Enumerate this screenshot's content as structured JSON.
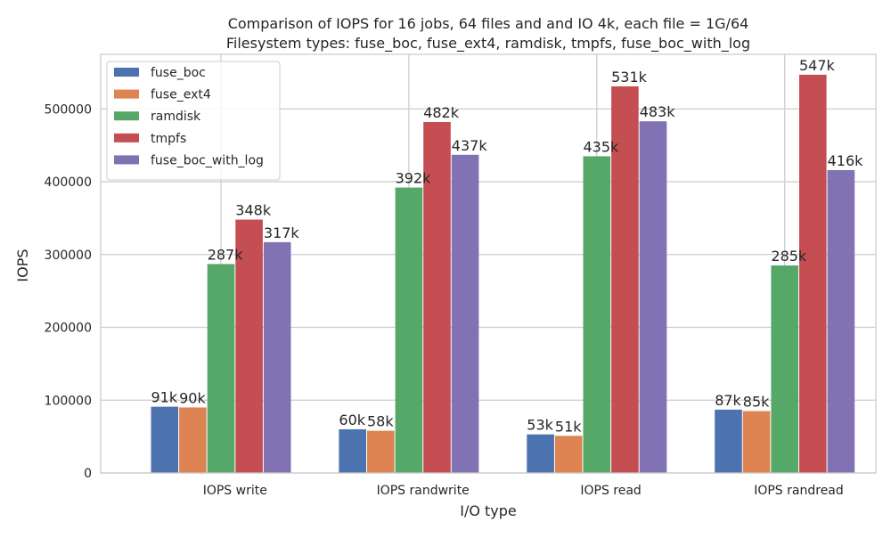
{
  "chart_data": {
    "type": "bar",
    "title": "Comparison of IOPS for 16 jobs, 64 files and  and IO 4k, each file = 1G/64",
    "subtitle": "Filesystem types: fuse_boc, fuse_ext4, ramdisk, tmpfs, fuse_boc_with_log",
    "xlabel": "I/O type",
    "ylabel": "IOPS",
    "categories": [
      "IOPS write",
      "IOPS randwrite",
      "IOPS read",
      "IOPS randread"
    ],
    "ylim": [
      0,
      575000
    ],
    "yticks": [
      0,
      100000,
      200000,
      300000,
      400000,
      500000
    ],
    "ytick_labels": [
      "0",
      "100000",
      "200000",
      "300000",
      "400000",
      "500000"
    ],
    "grid": true,
    "legend_position": "top-left",
    "series": [
      {
        "name": "fuse_boc",
        "color": "#4c72b0",
        "values": [
          91000,
          60000,
          53000,
          87000
        ],
        "labels": [
          "91k",
          "60k",
          "53k",
          "87k"
        ]
      },
      {
        "name": "fuse_ext4",
        "color": "#dd8452",
        "values": [
          90000,
          58000,
          51000,
          85000
        ],
        "labels": [
          "90k",
          "58k",
          "51k",
          "85k"
        ]
      },
      {
        "name": "ramdisk",
        "color": "#55a868",
        "values": [
          287000,
          392000,
          435000,
          285000
        ],
        "labels": [
          "287k",
          "392k",
          "435k",
          "285k"
        ]
      },
      {
        "name": "tmpfs",
        "color": "#c44e52",
        "values": [
          348000,
          482000,
          531000,
          547000
        ],
        "labels": [
          "348k",
          "482k",
          "531k",
          "547k"
        ]
      },
      {
        "name": "fuse_boc_with_log",
        "color": "#8172b3",
        "values": [
          317000,
          437000,
          483000,
          416000
        ],
        "labels": [
          "317k",
          "437k",
          "483k",
          "416k"
        ]
      }
    ]
  }
}
